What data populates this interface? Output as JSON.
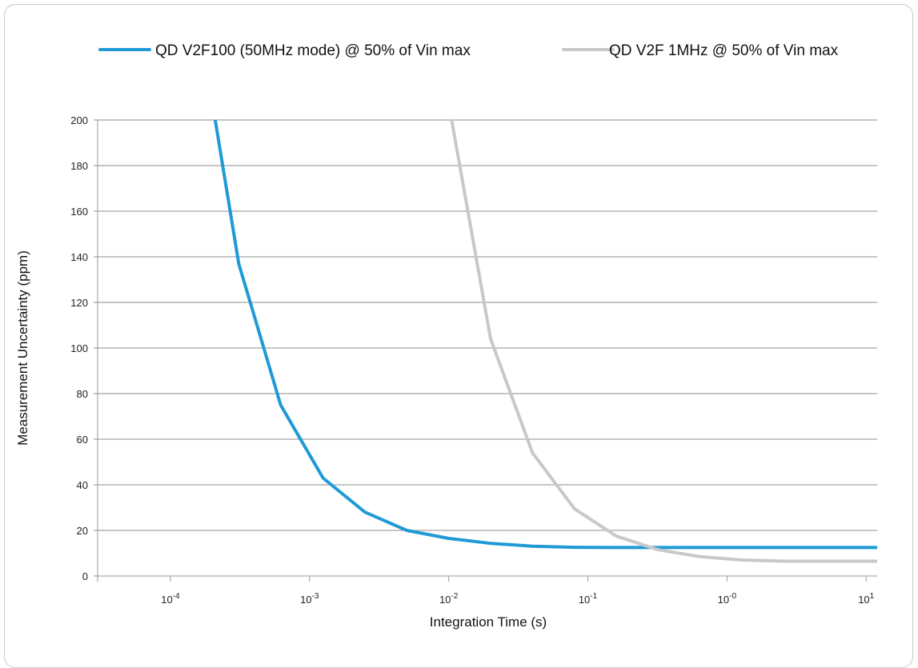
{
  "chart_data": {
    "type": "line",
    "title": "",
    "xlabel": "Integration Time (s)",
    "ylabel": "Measurement Uncertainty (ppm)",
    "x_scale": "log",
    "xlim": [
      3e-05,
      12
    ],
    "ylim": [
      0,
      200
    ],
    "grid": "horizontal",
    "legend_position": "top",
    "x_ticks": [
      {
        "value": 0.0001,
        "base": "10",
        "exp": "-4"
      },
      {
        "value": 0.001,
        "base": "10",
        "exp": "-3"
      },
      {
        "value": 0.01,
        "base": "10",
        "exp": "-2"
      },
      {
        "value": 0.1,
        "base": "10",
        "exp": "-1"
      },
      {
        "value": 1,
        "base": "10",
        "exp": "-0"
      },
      {
        "value": 10,
        "base": "10",
        "exp": "1"
      }
    ],
    "y_ticks": [
      0,
      20,
      40,
      60,
      80,
      100,
      120,
      140,
      160,
      180,
      200
    ],
    "series": [
      {
        "name": "QD V2F100 (50MHz mode) @ 50% of Vin max",
        "color": "#1f9ad6",
        "points": [
          [
            0.00021,
            200
          ],
          [
            0.00031,
            137
          ],
          [
            0.00062,
            75
          ],
          [
            0.00125,
            43
          ],
          [
            0.0025,
            28
          ],
          [
            0.005,
            20
          ],
          [
            0.01,
            16.5
          ],
          [
            0.02,
            14.3
          ],
          [
            0.04,
            13.1
          ],
          [
            0.08,
            12.6
          ],
          [
            0.16,
            12.5
          ],
          [
            0.32,
            12.5
          ],
          [
            0.64,
            12.5
          ],
          [
            1.28,
            12.5
          ],
          [
            2.56,
            12.5
          ],
          [
            5.12,
            12.5
          ],
          [
            12,
            12.5
          ]
        ]
      },
      {
        "name": "QD V2F 1MHz @ 50% of Vin max",
        "color": "#c8c8c8",
        "points": [
          [
            0.0105,
            200
          ],
          [
            0.02,
            104
          ],
          [
            0.04,
            54
          ],
          [
            0.08,
            29.5
          ],
          [
            0.16,
            17.5
          ],
          [
            0.32,
            11.5
          ],
          [
            0.64,
            8.5
          ],
          [
            1.28,
            7
          ],
          [
            2.56,
            6.5
          ],
          [
            5.12,
            6.5
          ],
          [
            12,
            6.5
          ]
        ]
      }
    ]
  }
}
